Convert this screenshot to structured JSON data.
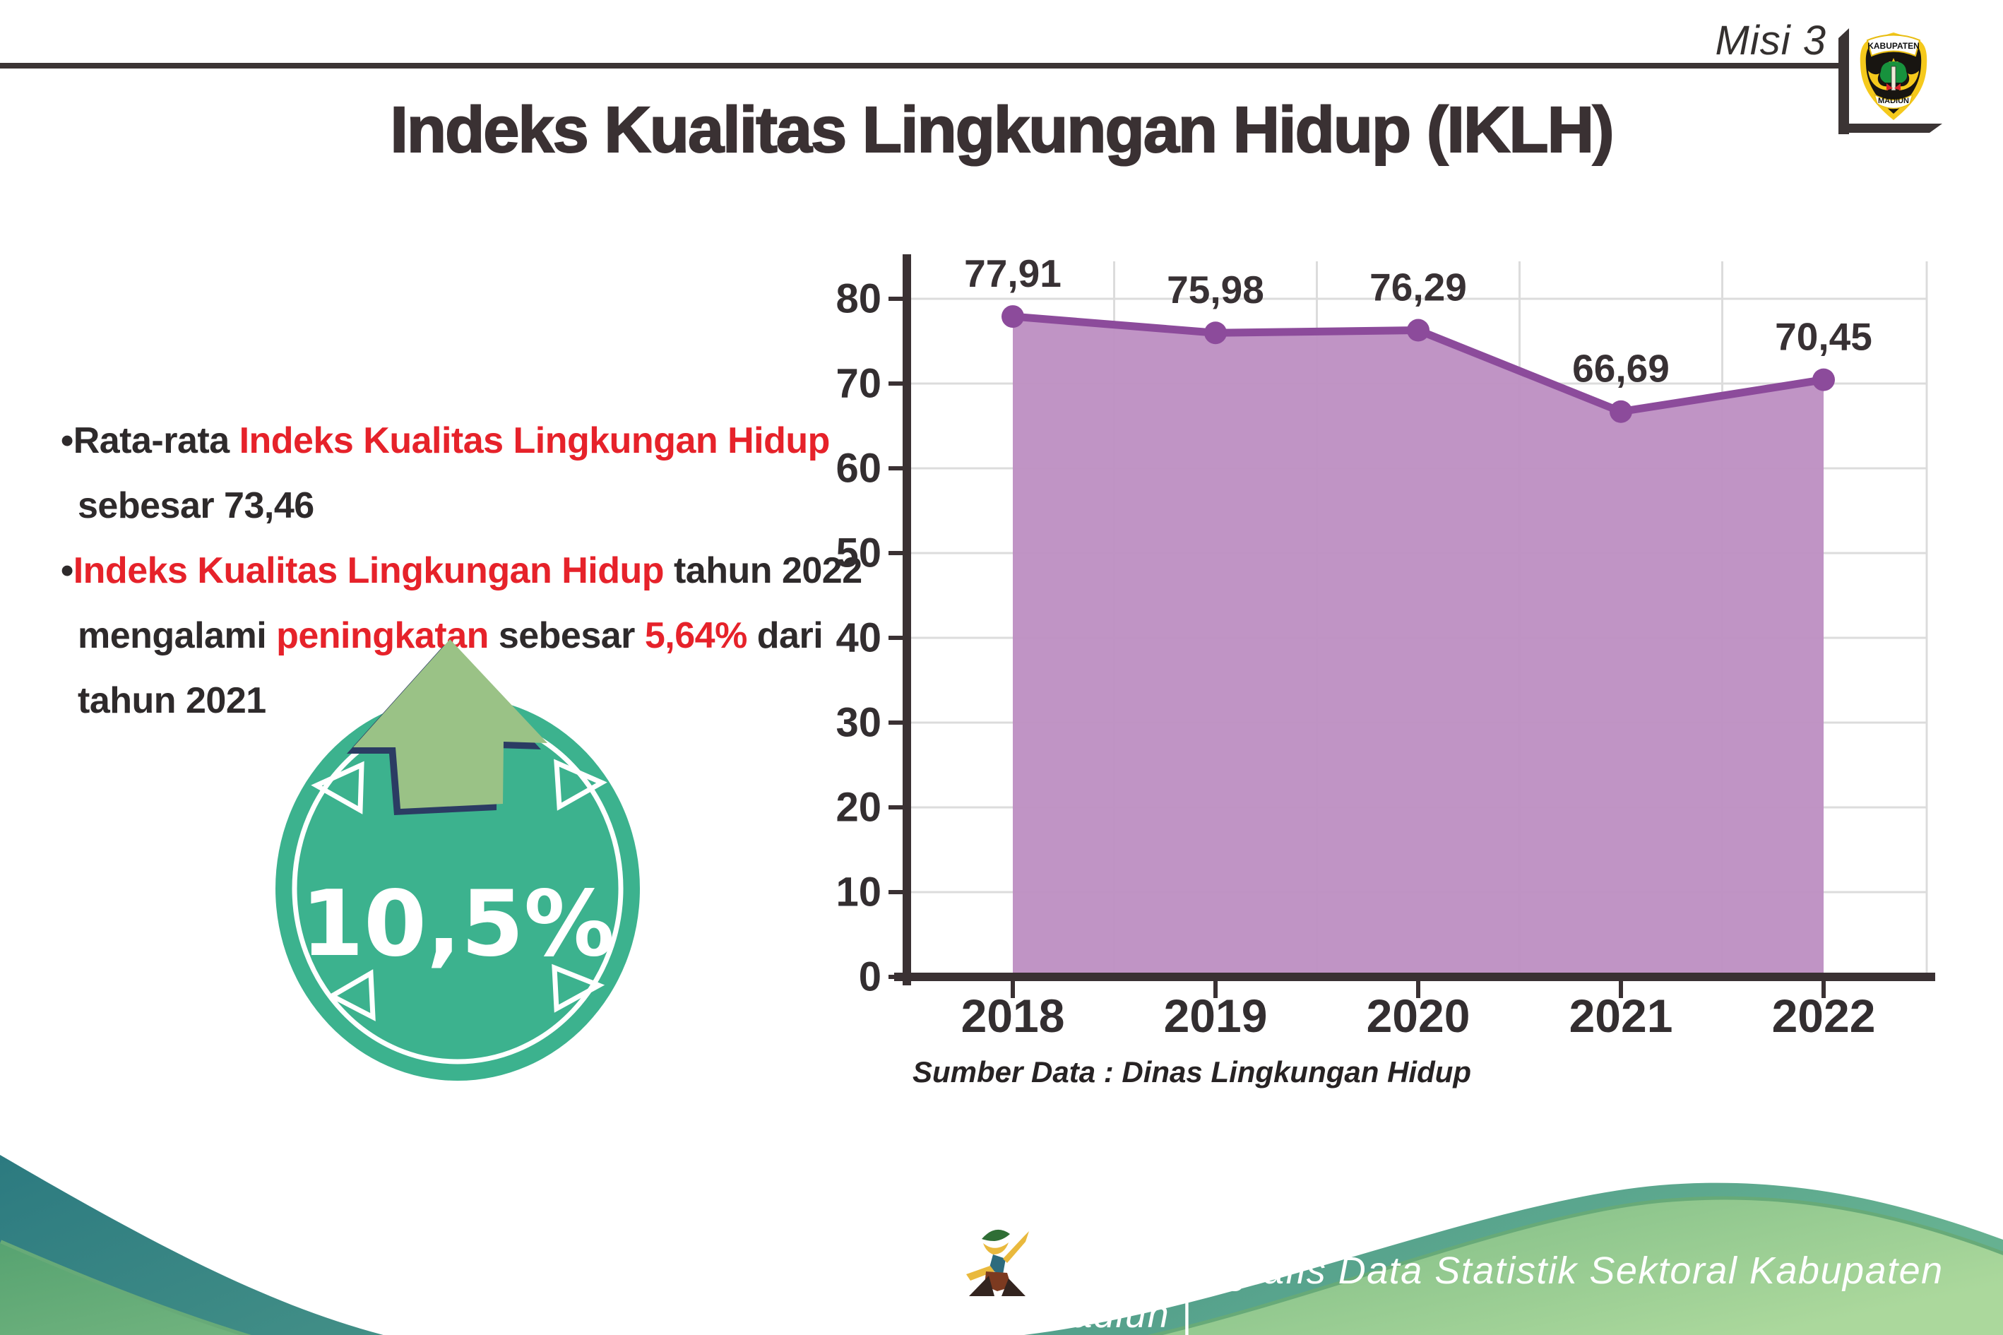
{
  "header": {
    "misi_label": "Misi 3",
    "logo": {
      "top_text": "KABUPATEN",
      "bottom_text": "MADIUN"
    }
  },
  "title": "Indeks Kualitas Lingkungan Hidup (IKLH)",
  "text_colors": {
    "dark": "#2e2a2b",
    "red": "#e6222a"
  },
  "bullets": [
    {
      "lines": [
        [
          {
            "text": "•Rata-rata ",
            "color": "dark"
          },
          {
            "text": "Indeks Kualitas Lingkungan Hidup",
            "color": "red"
          }
        ],
        [
          {
            "text": "sebesar 73,46",
            "color": "dark"
          }
        ]
      ]
    },
    {
      "lines": [
        [
          {
            "text": "•",
            "color": "dark"
          },
          {
            "text": "Indeks Kualitas Lingkungan Hidup",
            "color": "red"
          },
          {
            "text": " tahun 2022",
            "color": "dark"
          }
        ],
        [
          {
            "text": "mengalami ",
            "color": "dark"
          },
          {
            "text": "peningkatan",
            "color": "red"
          },
          {
            "text": " sebesar ",
            "color": "dark"
          },
          {
            "text": "5,64%",
            "color": "red"
          },
          {
            "text": " dari",
            "color": "dark"
          }
        ],
        [
          {
            "text": "tahun 2021",
            "color": "dark"
          }
        ]
      ]
    }
  ],
  "badge": {
    "value": "10,5%",
    "circle_color": "#3cb28e",
    "ring_color": "#ffffff",
    "arrow_color": "#9ac286",
    "arrow_outline_color": "#2b3c63"
  },
  "chart_data": {
    "type": "area",
    "title": "",
    "categories": [
      "2018",
      "2019",
      "2020",
      "2021",
      "2022"
    ],
    "series": [
      {
        "name": "IKLH",
        "values": [
          77.91,
          75.98,
          76.29,
          66.69,
          70.45
        ]
      }
    ],
    "value_labels": [
      "77,91",
      "75,98",
      "76,29",
      "66,69",
      "70,45"
    ],
    "ylim": [
      0,
      80
    ],
    "ytick_step": 10,
    "grid": true,
    "legend": "none",
    "colors": {
      "line": "#8c4b9b",
      "area": "#bd90c3",
      "marker": "#8c4b9b",
      "grid": "#dcdcdc",
      "axis": "#3a3133",
      "tick_label": "#332e30",
      "data_label": "#383134"
    },
    "source_note": "Sumber Data : Dinas Lingkungan Hidup"
  },
  "footer": {
    "text": "Media Infografis Data Statistik Sektoral Kabupaten Madiun |",
    "teal_colors": [
      "#2c7a80",
      "#66b191"
    ],
    "green_colors": [
      "#4f9e6d",
      "#abd89c"
    ]
  }
}
